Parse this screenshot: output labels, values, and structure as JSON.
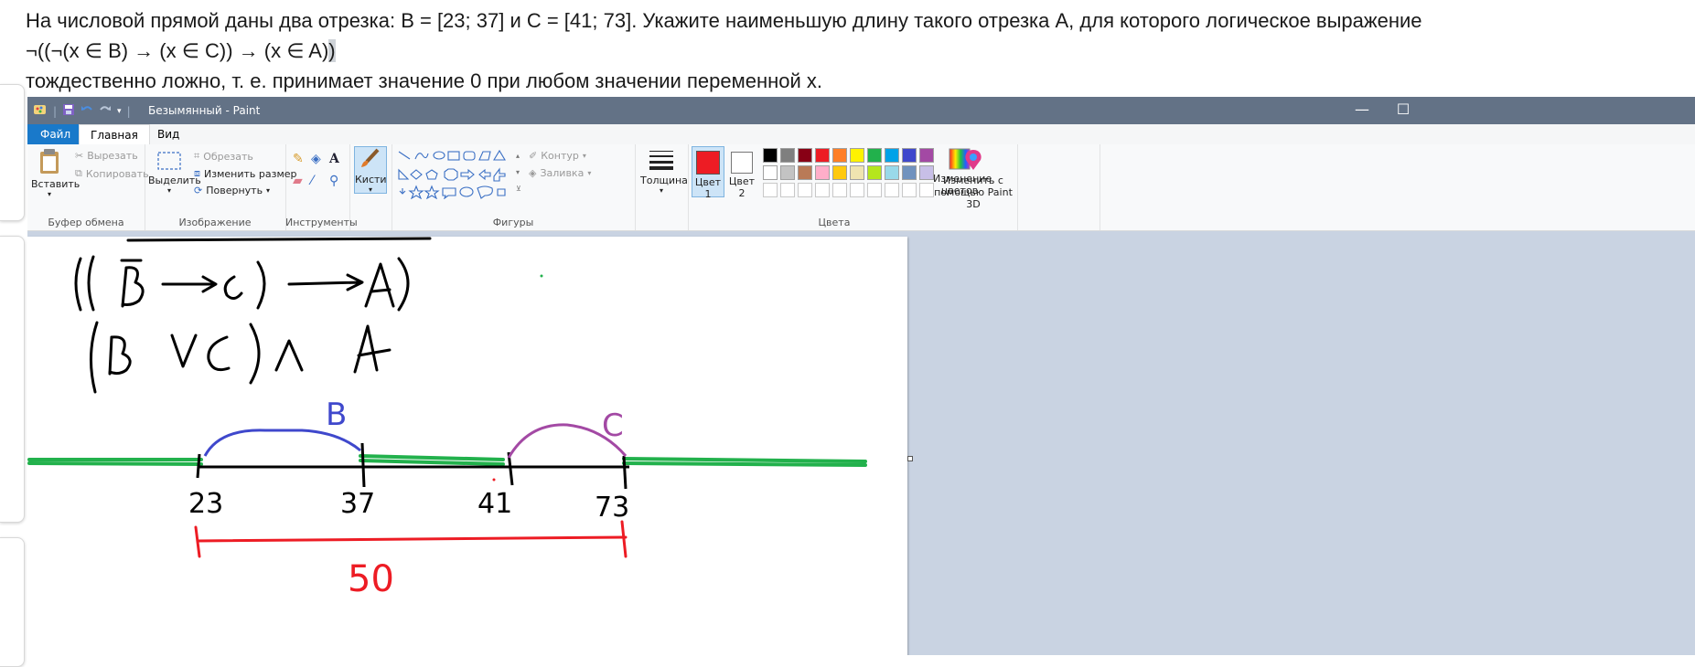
{
  "task": {
    "line1": "На числовой прямой даны два отрезка: B = [23; 37] и C = [41; 73]. Укажите наименьшую длину такого отрезка A, для которого логическое выражение",
    "line2_main": "¬((¬(x ∈ B) → (x ∈ C)) → (x ∈ A)",
    "line2_selected": ")",
    "line3": "тождественно ложно, т. е. принимает значение 0 при любом значении переменной x."
  },
  "window": {
    "title": "Безымянный - Paint",
    "minimize": "—",
    "maximize": "☐"
  },
  "tabs": {
    "file": "Файл",
    "home": "Главная",
    "view": "Вид"
  },
  "ribbon": {
    "clipboard": {
      "label": "Буфер обмена",
      "paste": "Вставить",
      "cut": "Вырезать",
      "copy": "Копировать"
    },
    "image": {
      "label": "Изображение",
      "select": "Выделить",
      "crop": "Обрезать",
      "resize": "Изменить размер",
      "rotate": "Повернуть"
    },
    "tools": {
      "label": "Инструменты"
    },
    "brushes": {
      "label": "Кисти"
    },
    "shapes": {
      "label": "Фигуры",
      "outline": "Контур",
      "fill": "Заливка"
    },
    "size": {
      "label": "Толщина"
    },
    "colors": {
      "label": "Цвета",
      "color1_a": "Цвет",
      "color1_b": "1",
      "color2_a": "Цвет",
      "color2_b": "2",
      "edit_a": "Изменение",
      "edit_b": "цветов",
      "paint3d_a": "Изменить с",
      "paint3d_b": "помощью Paint 3D",
      "color1_value": "#ed1c24",
      "color2_value": "#ffffff",
      "palette_row1": [
        "#000000",
        "#7f7f7f",
        "#880015",
        "#ed1c24",
        "#ff7f27",
        "#fff200",
        "#22b14c",
        "#00a2e8",
        "#3f48cc",
        "#a349a4"
      ],
      "palette_row2": [
        "#ffffff",
        "#c3c3c3",
        "#b97a57",
        "#ffaec9",
        "#ffc90e",
        "#efe4b0",
        "#b5e61d",
        "#99d9ea",
        "#7092be",
        "#c8bfe7"
      ]
    }
  },
  "drawing": {
    "tick_23": "23",
    "tick_37": "37",
    "tick_41": "41",
    "tick_73": "73",
    "label_b": "B",
    "label_c": "C",
    "length": "50",
    "ink": {
      "black": "#000000",
      "blue": "#3f48cc",
      "purple": "#a349a4",
      "green": "#22b14c",
      "red": "#ed1c24"
    }
  }
}
